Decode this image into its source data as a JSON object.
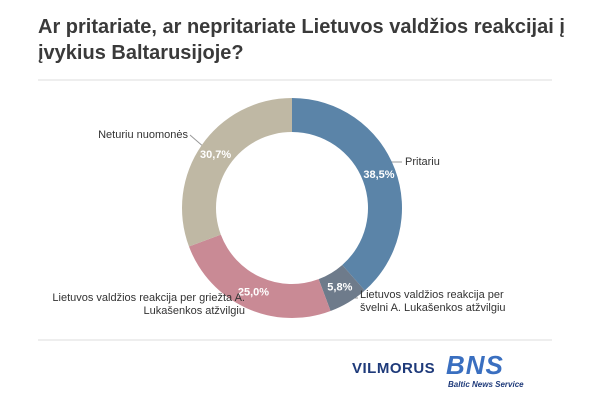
{
  "chart_data": {
    "type": "donut",
    "title": "Ar pritariate, ar nepritariate Lietuvos valdžios reakcijai į įvykius Baltarusijoje?",
    "categories": [
      "Pritariu",
      "Lietuvos valdžios reakcija per švelni A. Lukašenkos atžvilgiu",
      "Lietuvos valdžios reakcija per griežta A. Lukašenkos atžvilgiu",
      "Neturiu nuomonės"
    ],
    "values": [
      38.5,
      5.8,
      25.0,
      30.7
    ],
    "value_labels": [
      "38,5%",
      "5,8%",
      "25,0%",
      "30,7%"
    ],
    "colors": [
      "#5b84a8",
      "#6e7b8b",
      "#c98a95",
      "#bfb8a4"
    ]
  },
  "logos": {
    "vilmorus": "VILMORUS",
    "bns": "BNS",
    "bns_sub": "Baltic News Service"
  }
}
